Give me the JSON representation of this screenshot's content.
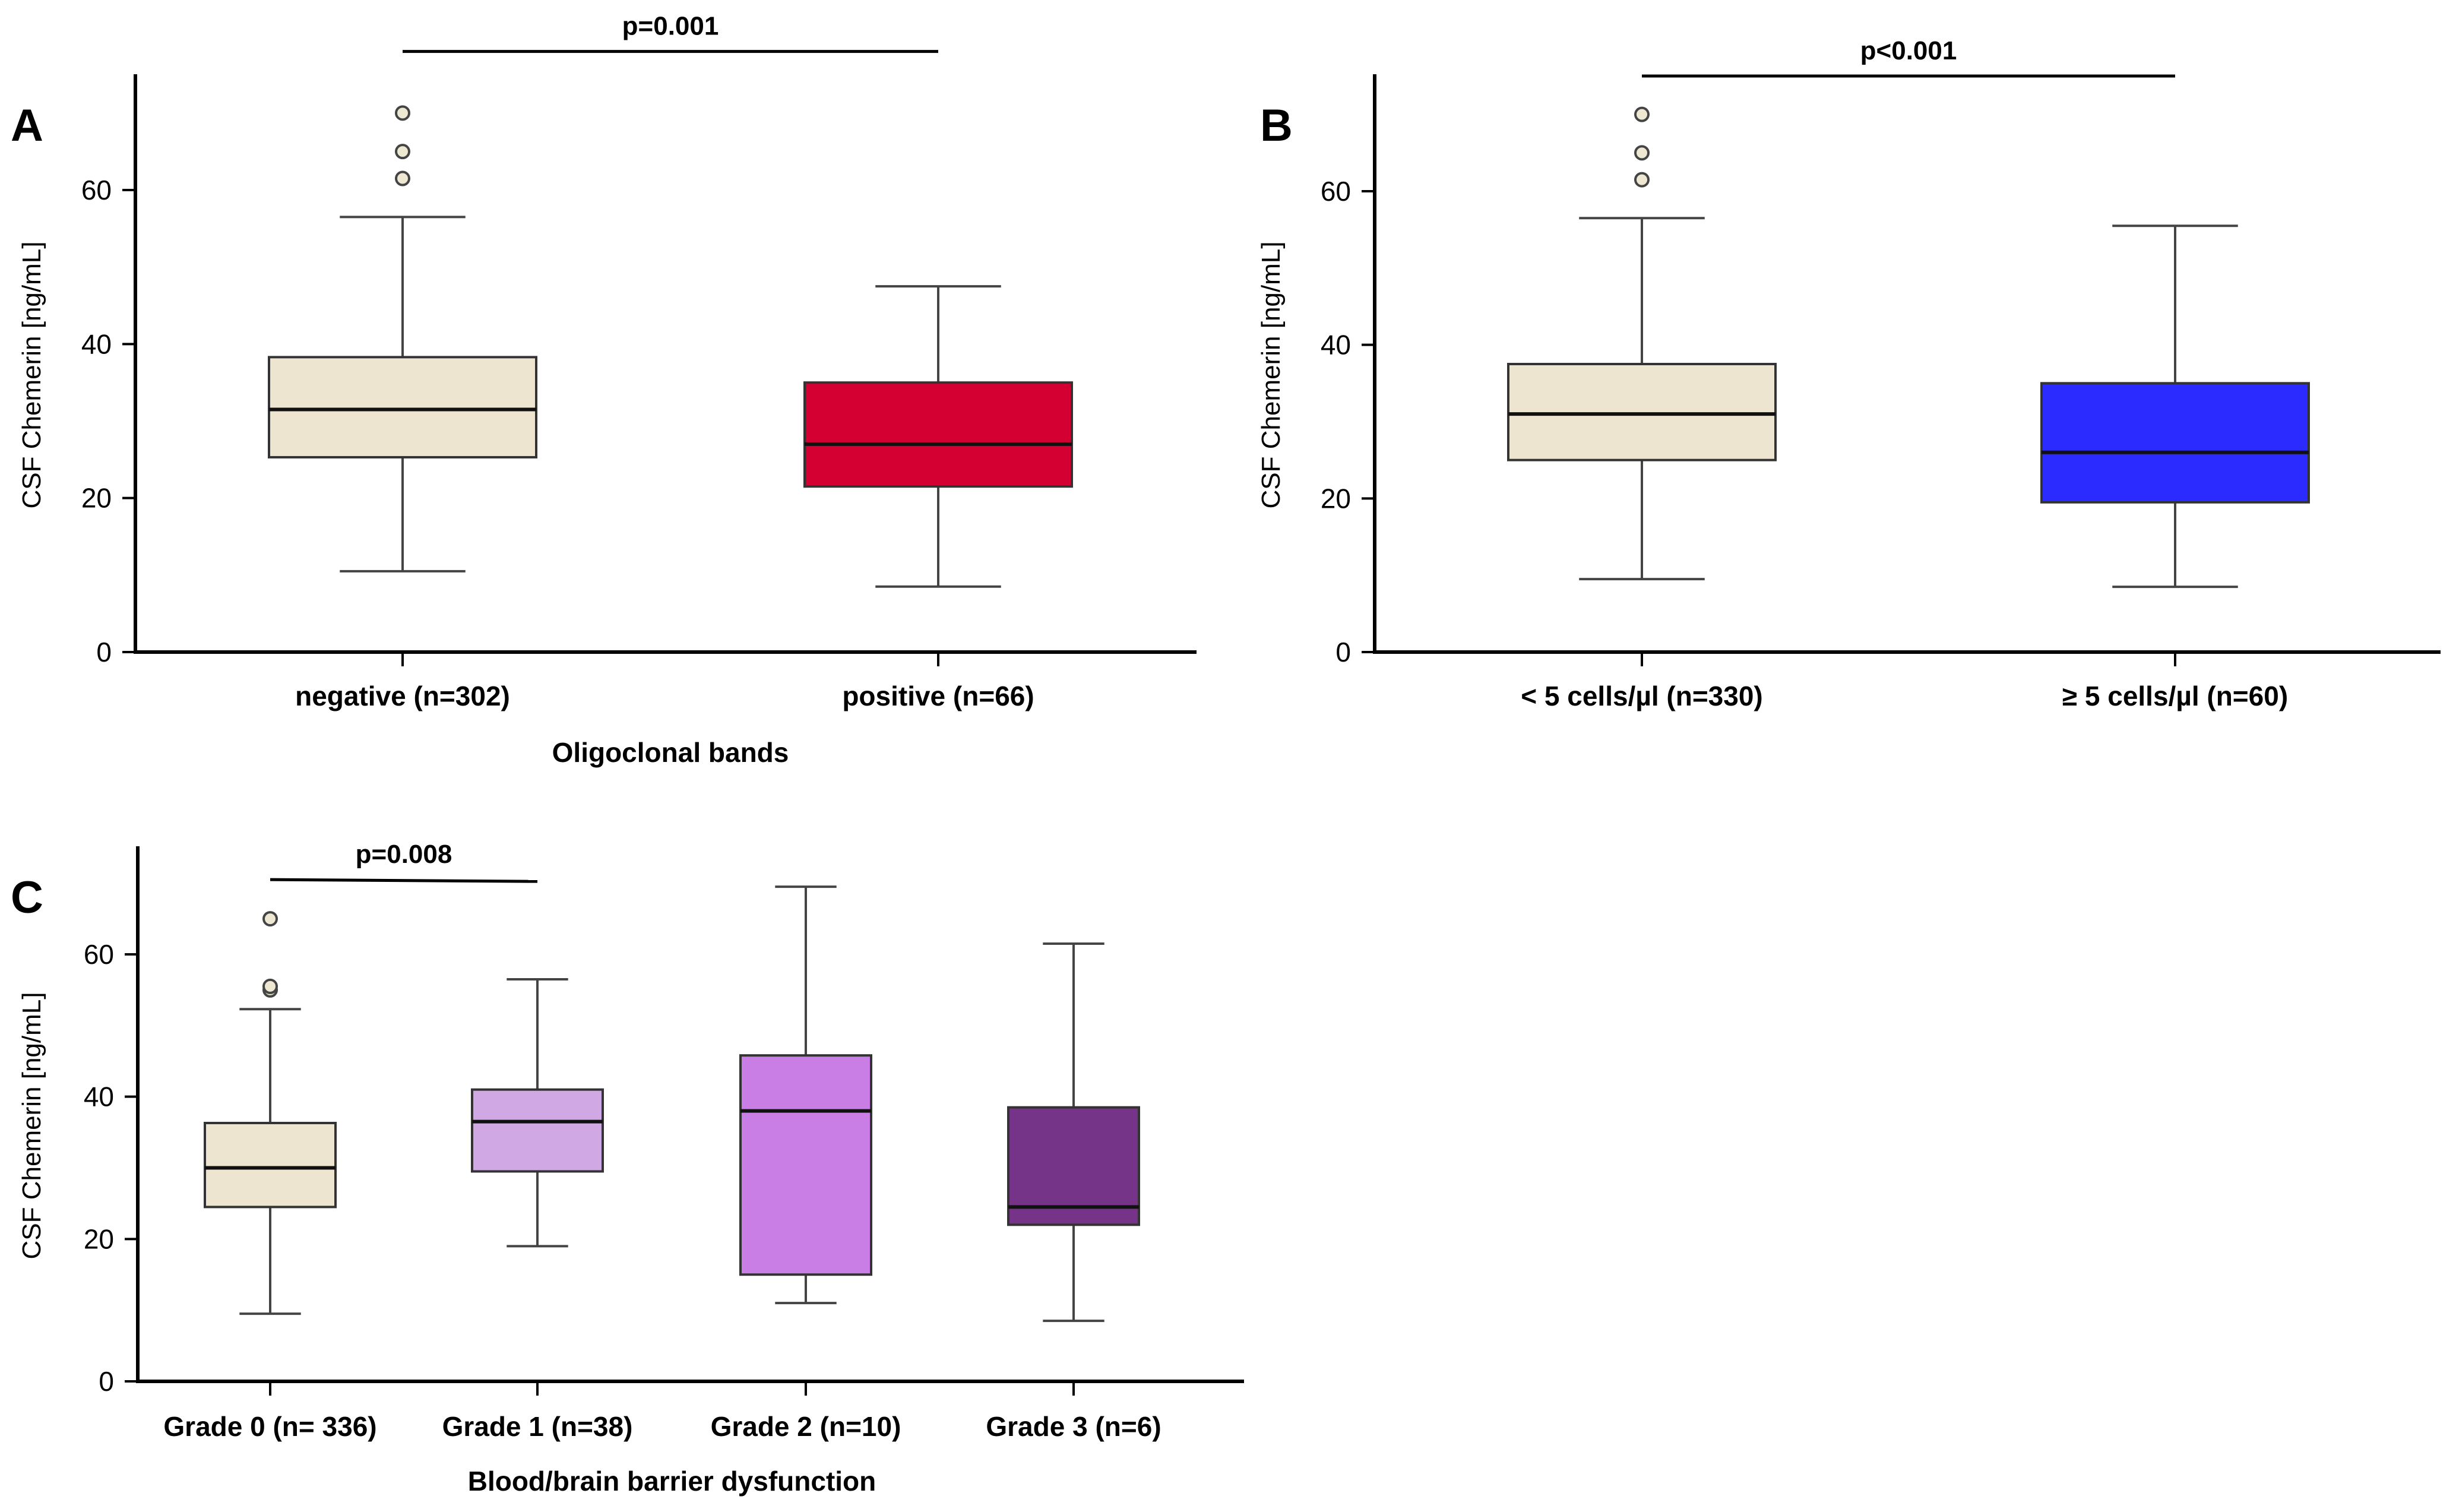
{
  "chart_data": [
    {
      "type": "box",
      "panel": "A",
      "ylabel": "CSF Chemerin [ng/mL]",
      "xlabel": "Oligoclonal bands",
      "ylim": [
        0,
        75
      ],
      "yticks": [
        0,
        20,
        40,
        60
      ],
      "categories": [
        "negative (n=302)",
        "positive (n=66)"
      ],
      "colors": [
        "#ede5cf",
        "#d50032"
      ],
      "boxes": [
        {
          "min": 10.5,
          "q1": 25.3,
          "median": 31.5,
          "q3": 38.3,
          "max": 56.5,
          "outliers": [
            61.5,
            65,
            70
          ]
        },
        {
          "min": 8.5,
          "q1": 21.5,
          "median": 27,
          "q3": 35,
          "max": 47.5,
          "outliers": []
        }
      ],
      "significance": [
        {
          "from": 0,
          "to": 1,
          "label": "p=0.001",
          "y": 78
        }
      ]
    },
    {
      "type": "box",
      "panel": "B",
      "ylabel": "CSF Chemerin [ng/mL]",
      "xlabel": "",
      "ylim": [
        0,
        75
      ],
      "yticks": [
        0,
        20,
        40,
        60
      ],
      "categories": [
        "< 5 cells/µl (n=330)",
        "≥ 5 cells/µl (n=60)"
      ],
      "colors": [
        "#ede5cf",
        "#2b2bff"
      ],
      "boxes": [
        {
          "min": 9.5,
          "q1": 25,
          "median": 31,
          "q3": 37.5,
          "max": 56.5,
          "outliers": [
            61.5,
            65,
            70
          ]
        },
        {
          "min": 8.5,
          "q1": 19.5,
          "median": 26,
          "q3": 35,
          "max": 55.5,
          "outliers": []
        }
      ],
      "significance": [
        {
          "from": 0,
          "to": 1,
          "label": "p<0.001",
          "y": 75
        }
      ]
    },
    {
      "type": "box",
      "panel": "C",
      "ylabel": "CSF Chemerin [ng/mL]",
      "xlabel": "Blood/brain barrier dysfunction",
      "ylim": [
        0,
        75
      ],
      "yticks": [
        0,
        20,
        40,
        60
      ],
      "categories": [
        "Grade 0 (n= 336)",
        "Grade 1 (n=38)",
        "Grade 2 (n=10)",
        "Grade 3 (n=6)"
      ],
      "colors": [
        "#ede5cf",
        "#d0a8e3",
        "#c87ee4",
        "#763488"
      ],
      "boxes": [
        {
          "min": 9.5,
          "q1": 24.5,
          "median": 30,
          "q3": 36.3,
          "max": 52.3,
          "outliers": [
            55,
            55.5,
            65
          ]
        },
        {
          "min": 19,
          "q1": 29.5,
          "median": 36.5,
          "q3": 41,
          "max": 56.5,
          "outliers": []
        },
        {
          "min": 11,
          "q1": 15,
          "median": 38,
          "q3": 45.8,
          "max": 69.5,
          "outliers": []
        },
        {
          "min": 8.5,
          "q1": 22,
          "median": 24.5,
          "q3": 38.5,
          "max": 61.5,
          "outliers": []
        }
      ],
      "significance": [
        {
          "from": 0,
          "to": 1,
          "label": "p=0.008",
          "y": 70.5
        }
      ]
    }
  ]
}
